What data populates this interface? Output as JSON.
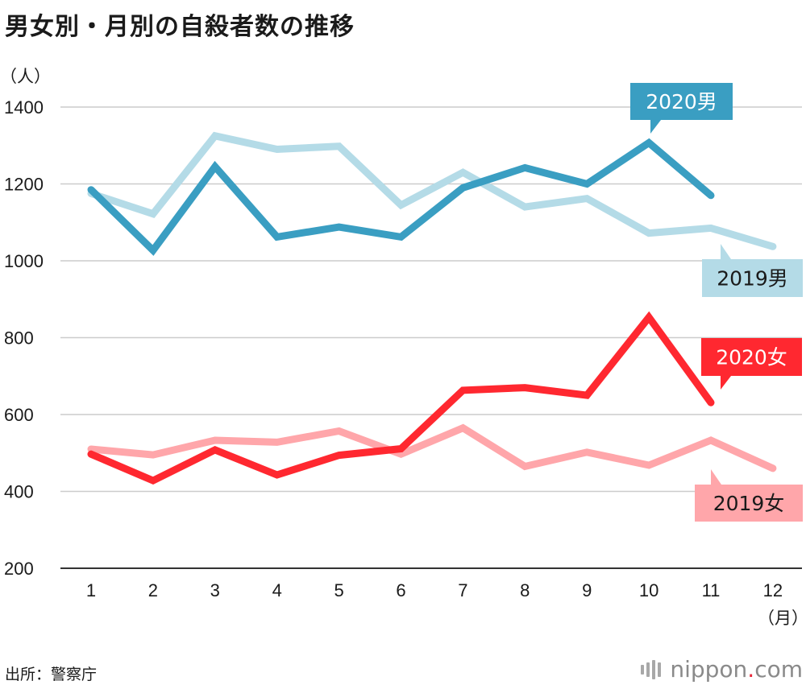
{
  "title": "男女別・月別の自殺者数の推移",
  "unit_label": "（人）",
  "x_unit_label": "（月）",
  "source": "出所：警察庁",
  "brand": {
    "name": "nippon",
    "dot": ".",
    "tld": "com"
  },
  "colors": {
    "male_2020": "#3a9ec2",
    "male_2019": "#b4dbe7",
    "female_2020": "#ff2830",
    "female_2019": "#ffa6aa",
    "grid": "#cccccc",
    "axis": "#333333"
  },
  "chart_data": {
    "type": "line",
    "title": "男女別・月別の自殺者数の推移",
    "xlabel": "（月）",
    "ylabel": "（人）",
    "x": [
      "1",
      "2",
      "3",
      "4",
      "5",
      "6",
      "7",
      "8",
      "9",
      "10",
      "11",
      "12"
    ],
    "ylim": [
      200,
      1400
    ],
    "yticks": [
      200,
      400,
      600,
      800,
      1000,
      1200,
      1400
    ],
    "grid": true,
    "series": [
      {
        "name": "2019男",
        "color": "#b4dbe7",
        "values": [
          1175,
          1122,
          1325,
          1290,
          1298,
          1145,
          1230,
          1140,
          1162,
          1072,
          1085,
          1037
        ]
      },
      {
        "name": "2020男",
        "color": "#3a9ec2",
        "values": [
          1185,
          1027,
          1245,
          1062,
          1088,
          1062,
          1190,
          1242,
          1200,
          1307,
          1170,
          null
        ]
      },
      {
        "name": "2019女",
        "color": "#ffa6aa",
        "values": [
          510,
          495,
          533,
          528,
          557,
          497,
          565,
          465,
          502,
          468,
          533,
          460
        ]
      },
      {
        "name": "2020女",
        "color": "#ff2830",
        "values": [
          497,
          428,
          508,
          443,
          494,
          511,
          663,
          670,
          650,
          853,
          631,
          null
        ]
      }
    ]
  }
}
